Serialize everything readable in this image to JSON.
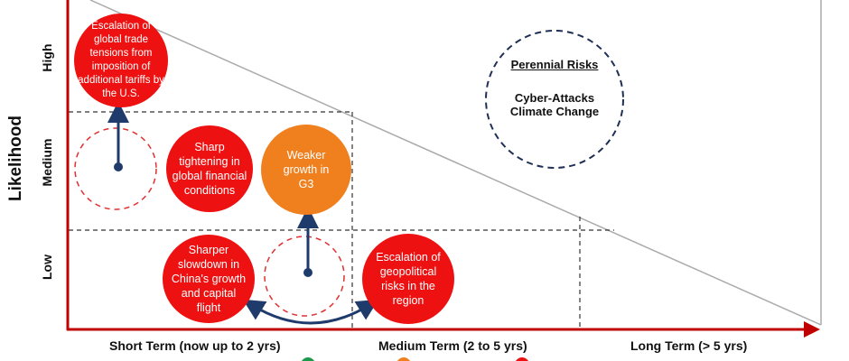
{
  "axes": {
    "y_title": "Likelihood",
    "y_levels": [
      "High",
      "Medium",
      "Low"
    ],
    "x_levels": [
      "Short Term (now up to 2 yrs)",
      "Medium Term (2 to 5 yrs)",
      "Long Term (> 5 yrs)"
    ]
  },
  "risks": {
    "trade": "Escalation of global trade tensions from imposition of additional tariffs by the U.S.",
    "financial": "Sharp tightening in global financial conditions",
    "g3": "Weaker growth in G3",
    "china": "Sharper slowdown in China's growth and capital flight",
    "geopolitical": "Escalation of geopolitical risks in the region"
  },
  "perennial": {
    "title": "Perennial Risks",
    "items": [
      "Cyber-Attacks",
      "Climate Change"
    ]
  },
  "colors": {
    "high_impact": "#ee1111",
    "medium_impact": "#f07f1e",
    "low_impact": "#1a9a4a",
    "axis": "#c00000",
    "arrow": "#1f3b6b"
  }
}
